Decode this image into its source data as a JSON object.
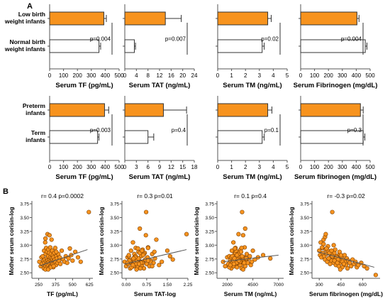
{
  "panel_labels": [
    "A",
    "B"
  ],
  "chart_data": [
    {
      "type": "bar",
      "orientation": "horizontal",
      "categories": [
        "Low birth weight infants",
        "Normal birth weight infants"
      ],
      "category_lines": [
        [
          "Low birth",
          "weight infants"
        ],
        [
          "Normal birth",
          "weight infants"
        ]
      ],
      "values": [
        390,
        355
      ],
      "errors": [
        18,
        12
      ],
      "xlabel": "Serum TF (pg/mL)",
      "xlim": [
        0,
        500
      ],
      "ticks": [
        0,
        100,
        200,
        300,
        400,
        500
      ],
      "p_label": "p=0.004"
    },
    {
      "type": "bar",
      "orientation": "horizontal",
      "categories": [
        "Low birth weight infants",
        "Normal birth weight infants"
      ],
      "values": [
        14,
        3.3
      ],
      "errors": [
        5.5,
        0.4
      ],
      "xlabel": "Serum TAT (ng/mL)",
      "xlim": [
        0,
        24
      ],
      "ticks": [
        0,
        4,
        8,
        12,
        16,
        20,
        24
      ],
      "p_label": "p=0.007"
    },
    {
      "type": "bar",
      "orientation": "horizontal",
      "categories": [
        "Low birth weight infants",
        "Normal birth weight infants"
      ],
      "values": [
        3.6,
        3.2
      ],
      "errors": [
        0.25,
        0.15
      ],
      "xlabel": "Serum TM (ng/mL)",
      "xlim": [
        0,
        5
      ],
      "ticks": [
        0,
        1,
        2,
        3,
        4,
        5
      ],
      "p_label": "p=0.02"
    },
    {
      "type": "bar",
      "orientation": "horizontal",
      "categories": [
        "Low birth weight infants",
        "Normal birth weight infants"
      ],
      "values": [
        405,
        465
      ],
      "errors": [
        15,
        12
      ],
      "xlabel": "Serum Fibrinogen (mg/dL)",
      "xlim": [
        0,
        500
      ],
      "ticks": [
        0,
        100,
        200,
        300,
        400,
        500
      ],
      "p_label": "p=0.004"
    },
    {
      "type": "bar",
      "orientation": "horizontal",
      "categories": [
        "Preterm infants",
        "Term infants"
      ],
      "category_lines": [
        [
          "Preterm",
          "infants"
        ],
        [
          "Term",
          "infants"
        ]
      ],
      "values": [
        395,
        345
      ],
      "errors": [
        30,
        10
      ],
      "xlabel": "Serum TF (pg/mL)",
      "xlim": [
        0,
        500
      ],
      "ticks": [
        0,
        100,
        200,
        300,
        400,
        500
      ],
      "p_label": "p=0.003"
    },
    {
      "type": "bar",
      "orientation": "horizontal",
      "categories": [
        "Preterm infants",
        "Term infants"
      ],
      "values": [
        10,
        6
      ],
      "errors": [
        6,
        1.5
      ],
      "xlabel": "Serum TAT (ng/mL)",
      "xlim": [
        0,
        18
      ],
      "ticks": [
        0,
        3,
        6,
        9,
        12,
        15,
        18
      ],
      "p_label": "p=0.4"
    },
    {
      "type": "bar",
      "orientation": "horizontal",
      "categories": [
        "Preterm infants",
        "Term infants"
      ],
      "values": [
        3.6,
        3.2
      ],
      "errors": [
        0.3,
        0.15
      ],
      "xlabel": "Serum TM (ng/mL)",
      "xlim": [
        0,
        5
      ],
      "ticks": [
        0,
        1,
        2,
        3,
        4,
        5
      ],
      "p_label": "p=0.1"
    },
    {
      "type": "bar",
      "orientation": "horizontal",
      "categories": [
        "Preterm infants",
        "Term infants"
      ],
      "values": [
        430,
        450
      ],
      "errors": [
        20,
        12
      ],
      "xlabel": "Serum fibrinogen (mg/dL)",
      "xlim": [
        0,
        500
      ],
      "ticks": [
        0,
        100,
        200,
        300,
        400,
        500
      ],
      "p_label": "p=0.3"
    },
    {
      "type": "scatter",
      "stat_label": "r= 0.4  p=0.0002",
      "xlabel": "TF (pg/mL)",
      "ylabel": "Mother serum corisin-log",
      "xlim": [
        200,
        650
      ],
      "ylim": [
        2.4,
        3.75
      ],
      "xticks": [
        250,
        375,
        500,
        625
      ],
      "yticks": [
        2.5,
        2.75,
        3.0,
        3.25,
        3.5,
        3.75
      ],
      "ytick_labels": [
        "2.50",
        "2.75",
        "3.00",
        "3.25",
        "3.50",
        "3.75"
      ],
      "fit": [
        [
          260,
          2.63
        ],
        [
          610,
          2.92
        ]
      ],
      "x": [
        255,
        265,
        270,
        275,
        280,
        285,
        288,
        290,
        292,
        295,
        298,
        300,
        302,
        305,
        305,
        308,
        310,
        312,
        312,
        315,
        315,
        318,
        320,
        320,
        322,
        325,
        325,
        328,
        330,
        330,
        332,
        335,
        335,
        338,
        340,
        340,
        342,
        345,
        345,
        348,
        350,
        350,
        352,
        355,
        355,
        358,
        360,
        362,
        365,
        368,
        370,
        372,
        375,
        378,
        380,
        385,
        390,
        395,
        400,
        405,
        410,
        420,
        430,
        440,
        450,
        460,
        470,
        480,
        490,
        500,
        520,
        540,
        560,
        620,
        300,
        320,
        340,
        360,
        380,
        300
      ],
      "y": [
        2.7,
        2.62,
        2.78,
        2.66,
        2.8,
        2.72,
        2.58,
        2.9,
        2.68,
        2.74,
        3.05,
        2.62,
        2.84,
        2.7,
        2.95,
        2.66,
        2.76,
        2.6,
        2.88,
        2.72,
        3.2,
        2.68,
        2.8,
        2.64,
        2.92,
        2.7,
        2.58,
        2.86,
        2.74,
        3.18,
        2.66,
        2.78,
        2.96,
        2.62,
        2.72,
        2.84,
        2.68,
        2.76,
        3.1,
        2.64,
        2.7,
        2.9,
        2.74,
        2.66,
        2.82,
        2.6,
        2.78,
        2.72,
        2.86,
        2.68,
        2.74,
        2.95,
        2.7,
        2.64,
        2.8,
        2.76,
        2.68,
        2.84,
        2.72,
        2.78,
        2.66,
        2.9,
        2.74,
        2.7,
        2.8,
        2.68,
        2.76,
        2.94,
        2.82,
        2.72,
        2.88,
        2.78,
        2.7,
        3.6,
        2.56,
        2.56,
        2.6,
        2.62,
        2.88,
        3.12
      ]
    },
    {
      "type": "scatter",
      "stat_label": "r= 0.3  p=0.01",
      "xlabel": "Serum TAT-log",
      "ylabel": "Mother serum corisin-log",
      "xlim": [
        -0.15,
        2.25
      ],
      "ylim": [
        2.4,
        3.75
      ],
      "xticks": [
        0,
        0.75,
        1.5,
        2.25
      ],
      "yticks": [
        2.5,
        2.75,
        3.0,
        3.25,
        3.5,
        3.75
      ],
      "xtick_labels": [
        "0.00",
        "0.75",
        "1.50",
        "2.25"
      ],
      "ytick_labels": [
        "2.50",
        "2.75",
        "3.00",
        "3.25",
        "3.50",
        "3.75"
      ],
      "fit": [
        [
          -0.05,
          2.66
        ],
        [
          2.2,
          2.92
        ]
      ],
      "x": [
        -0.05,
        0.0,
        0.05,
        0.08,
        0.1,
        0.12,
        0.15,
        0.18,
        0.2,
        0.22,
        0.25,
        0.28,
        0.3,
        0.32,
        0.35,
        0.38,
        0.4,
        0.42,
        0.45,
        0.48,
        0.5,
        0.52,
        0.55,
        0.58,
        0.6,
        0.62,
        0.65,
        0.68,
        0.7,
        0.72,
        0.75,
        0.78,
        0.8,
        0.85,
        0.9,
        0.95,
        1.0,
        1.05,
        1.1,
        1.2,
        1.3,
        1.5,
        1.7,
        2.2,
        0.1,
        0.2,
        0.3,
        0.4,
        0.5,
        0.6,
        0.7,
        0.8,
        0.15,
        0.25,
        0.35,
        0.45,
        0.55,
        0.65,
        0.12,
        0.33,
        0.47,
        0.58,
        0.73,
        0.88,
        1.6,
        0.05,
        0.27,
        0.43,
        0.62,
        0.8,
        1.03,
        0.38,
        0.52,
        0.95
      ],
      "y": [
        2.7,
        2.62,
        2.78,
        2.66,
        2.8,
        2.72,
        2.58,
        2.9,
        2.68,
        2.74,
        3.05,
        2.62,
        2.84,
        2.7,
        2.95,
        2.66,
        2.76,
        2.6,
        2.88,
        2.72,
        3.3,
        2.68,
        2.8,
        2.64,
        2.92,
        2.7,
        2.58,
        2.86,
        2.74,
        3.18,
        2.66,
        2.78,
        2.96,
        2.62,
        2.72,
        2.84,
        2.68,
        2.76,
        3.1,
        2.64,
        2.7,
        2.9,
        2.74,
        3.2,
        2.82,
        2.6,
        2.78,
        2.72,
        2.86,
        2.68,
        2.74,
        2.95,
        2.7,
        2.64,
        2.8,
        2.76,
        2.68,
        2.84,
        2.72,
        2.78,
        2.66,
        2.9,
        3.6,
        2.7,
        2.8,
        2.68,
        2.76,
        2.94,
        2.82,
        2.72,
        2.88,
        2.56,
        2.58,
        2.62
      ]
    },
    {
      "type": "scatter",
      "stat_label": "r= 0.1  p=0.4",
      "xlabel": "Serum TM (ng/mL)",
      "ylabel": "Mother serum corisin-log",
      "xlim": [
        1000,
        7500
      ],
      "ylim": [
        2.4,
        3.75
      ],
      "xticks": [
        2000,
        4500,
        7000
      ],
      "yticks": [
        2.5,
        2.75,
        3.0,
        3.25,
        3.5,
        3.75
      ],
      "ytick_labels": [
        "2.50",
        "2.75",
        "3.00",
        "3.25",
        "3.50",
        "3.75"
      ],
      "fit": [
        [
          1600,
          2.7
        ],
        [
          7000,
          2.82
        ]
      ],
      "x": [
        1600,
        1800,
        2000,
        2100,
        2200,
        2300,
        2400,
        2450,
        2500,
        2550,
        2600,
        2650,
        2700,
        2750,
        2800,
        2850,
        2900,
        2950,
        3000,
        3050,
        3100,
        3150,
        3200,
        3250,
        3300,
        3350,
        3400,
        3450,
        3500,
        3550,
        3600,
        3650,
        3700,
        3750,
        3800,
        3900,
        4000,
        4100,
        4200,
        4300,
        4400,
        4500,
        4700,
        5000,
        5500,
        6200,
        2200,
        2400,
        2600,
        2800,
        3000,
        3200,
        3400,
        3600,
        2300,
        2500,
        2700,
        2900,
        3100,
        3300,
        3500,
        2650,
        2850,
        3050,
        3250,
        3450,
        3650,
        3850,
        2750,
        2950,
        3150,
        3350,
        3550,
        3750
      ],
      "y": [
        2.7,
        2.62,
        2.78,
        2.66,
        2.8,
        2.72,
        2.58,
        2.9,
        2.68,
        2.74,
        3.05,
        2.62,
        2.84,
        2.7,
        2.95,
        2.66,
        2.76,
        2.6,
        2.88,
        2.72,
        3.2,
        2.68,
        2.8,
        2.64,
        2.92,
        2.7,
        2.58,
        3.6,
        2.74,
        3.18,
        2.66,
        2.78,
        2.96,
        2.62,
        2.72,
        2.84,
        2.68,
        2.76,
        2.8,
        2.64,
        2.7,
        2.9,
        2.74,
        2.78,
        2.82,
        2.76,
        2.6,
        2.78,
        2.72,
        2.86,
        2.68,
        2.74,
        2.95,
        2.7,
        2.64,
        2.8,
        2.76,
        2.68,
        2.84,
        2.72,
        2.78,
        2.66,
        2.9,
        2.74,
        2.7,
        2.8,
        2.68,
        2.76,
        2.94,
        2.82,
        2.72,
        2.88,
        2.56,
        3.3
      ]
    },
    {
      "type": "scatter",
      "stat_label": "r= -0.3  p=0.02",
      "xlabel": "Serum fibrinogen (mg/dL)",
      "ylabel": "Mother serum corisin-log",
      "xlim": [
        250,
        720
      ],
      "ylim": [
        2.4,
        3.75
      ],
      "xticks": [
        300,
        450,
        600
      ],
      "yticks": [
        2.5,
        2.75,
        3.0,
        3.25,
        3.5,
        3.75
      ],
      "ytick_labels": [
        "2.50",
        "2.75",
        "3.00",
        "3.25",
        "3.50",
        "3.75"
      ],
      "fit": [
        [
          290,
          2.88
        ],
        [
          680,
          2.6
        ]
      ],
      "x": [
        300,
        305,
        310,
        315,
        320,
        325,
        330,
        335,
        340,
        345,
        350,
        355,
        360,
        365,
        370,
        375,
        380,
        385,
        390,
        395,
        400,
        405,
        410,
        415,
        420,
        425,
        430,
        435,
        440,
        445,
        450,
        455,
        460,
        465,
        470,
        475,
        480,
        485,
        490,
        495,
        500,
        510,
        520,
        530,
        540,
        550,
        560,
        570,
        590,
        610,
        630,
        690,
        320,
        340,
        360,
        380,
        400,
        420,
        440,
        460,
        330,
        350,
        370,
        390,
        410,
        430,
        450,
        470,
        345,
        365,
        385,
        405,
        425,
        445
      ],
      "y": [
        2.9,
        2.82,
        3.05,
        2.78,
        2.95,
        2.86,
        3.1,
        2.8,
        2.74,
        2.92,
        2.84,
        2.7,
        2.98,
        2.76,
        2.88,
        2.66,
        2.82,
        2.72,
        3.6,
        2.78,
        2.68,
        2.86,
        2.74,
        2.64,
        2.8,
        2.7,
        2.76,
        2.62,
        2.84,
        2.68,
        2.72,
        2.78,
        2.6,
        2.74,
        2.66,
        2.82,
        2.7,
        2.64,
        2.76,
        2.58,
        2.72,
        2.68,
        2.62,
        2.74,
        2.66,
        2.7,
        2.6,
        2.64,
        2.68,
        2.62,
        2.58,
        2.46,
        2.96,
        3.15,
        2.9,
        2.84,
        3.0,
        2.78,
        2.88,
        2.7,
        3.02,
        2.94,
        2.86,
        2.8,
        2.92,
        2.74,
        2.82,
        2.66,
        3.2,
        2.76,
        2.9,
        2.72,
        2.68,
        2.56
      ]
    }
  ]
}
